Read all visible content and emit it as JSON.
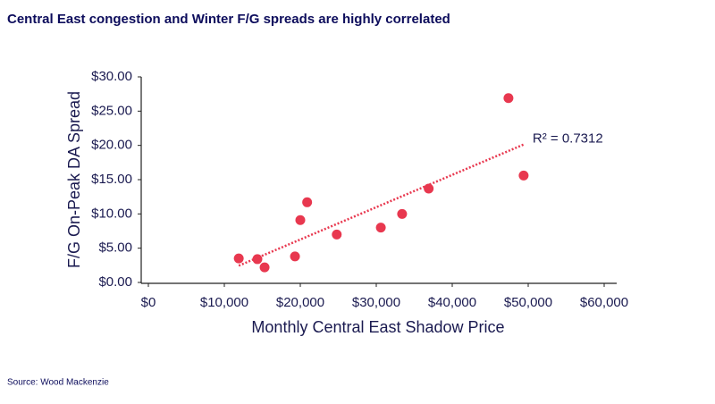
{
  "chart_data": {
    "type": "scatter",
    "title": "Central East congestion and Winter F/G spreads are highly correlated",
    "source": "Source: Wood Mackenzie",
    "x_label": "Monthly Central East Shadow Price",
    "y_label": "F/G On-Peak DA Spread",
    "trendline_label": "R² = 0.7312",
    "series": [
      {
        "name": "F/G spread",
        "color": "#e8384f",
        "x": [
          11900,
          14350,
          15300,
          19300,
          20000,
          20900,
          24800,
          30600,
          33400,
          36900,
          47400,
          49400
        ],
        "values": [
          3.5,
          3.4,
          2.2,
          3.8,
          9.1,
          11.7,
          7.0,
          8.0,
          10.0,
          13.7,
          26.9,
          15.6
        ]
      }
    ],
    "trendline_color": "#e8384f",
    "xlim": [
      0,
      60000
    ],
    "xticks": [
      {
        "value": 0,
        "label": "$0"
      },
      {
        "value": 10000,
        "label": "$10,000"
      },
      {
        "value": 20000,
        "label": "$20,000"
      },
      {
        "value": 30000,
        "label": "$30,000"
      },
      {
        "value": 40000,
        "label": "$40,000"
      },
      {
        "value": 50000,
        "label": "$50,000"
      },
      {
        "value": 60000,
        "label": "$60,000"
      }
    ],
    "ylim": [
      0,
      30
    ],
    "yticks": [
      {
        "value": 0,
        "label": "$0.00"
      },
      {
        "value": 5,
        "label": "$5.00"
      },
      {
        "value": 10,
        "label": "$10.00"
      },
      {
        "value": 15,
        "label": "$15.00"
      },
      {
        "value": 20,
        "label": "$20.00"
      },
      {
        "value": 25,
        "label": "$25.00"
      },
      {
        "value": 30,
        "label": "$30.00"
      }
    ],
    "grid": false
  }
}
